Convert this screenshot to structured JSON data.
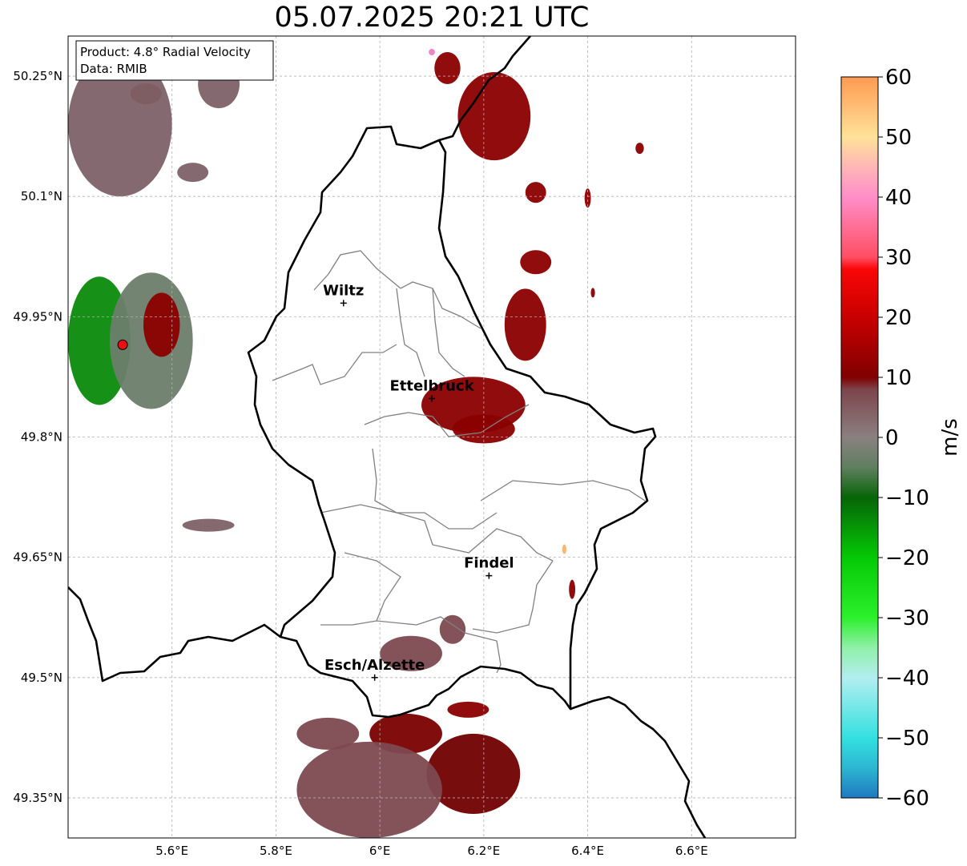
{
  "title": "05.07.2025 20:21 UTC",
  "info_box": {
    "line1": "Product: 4.8° Radial Velocity",
    "line2": "Data: RMIB"
  },
  "map": {
    "lon_range": [
      5.4,
      6.8
    ],
    "lat_range": [
      49.3,
      50.3
    ],
    "lon_ticks": [
      {
        "v": 5.6,
        "label": "5.6°E"
      },
      {
        "v": 5.8,
        "label": "5.8°E"
      },
      {
        "v": 6.0,
        "label": "6°E"
      },
      {
        "v": 6.2,
        "label": "6.2°E"
      },
      {
        "v": 6.4,
        "label": "6.4°E"
      },
      {
        "v": 6.6,
        "label": "6.6°E"
      }
    ],
    "lat_ticks": [
      {
        "v": 50.25,
        "label": "50.25°N"
      },
      {
        "v": 50.1,
        "label": "50.1°N"
      },
      {
        "v": 49.95,
        "label": "49.95°N"
      },
      {
        "v": 49.8,
        "label": "49.8°N"
      },
      {
        "v": 49.65,
        "label": "49.65°N"
      },
      {
        "v": 49.5,
        "label": "49.5°N"
      },
      {
        "v": 49.35,
        "label": "49.35°N"
      }
    ],
    "cities": [
      {
        "name": "Wiltz",
        "lon": 5.93,
        "lat": 49.967
      },
      {
        "name": "Ettelbruck",
        "lon": 6.1,
        "lat": 49.848
      },
      {
        "name": "Findel",
        "lon": 6.21,
        "lat": 49.627
      },
      {
        "name": "Esch/Alzette",
        "lon": 5.99,
        "lat": 49.5
      }
    ],
    "radar_site": {
      "lon": 5.505,
      "lat": 49.915,
      "color": "#e81010"
    },
    "echo_cells": [
      {
        "lon": 6.22,
        "lat": 50.2,
        "rx": 0.07,
        "ry": 0.055,
        "color": "#8b0000"
      },
      {
        "lon": 6.13,
        "lat": 50.26,
        "rx": 0.025,
        "ry": 0.02,
        "color": "#8b0000"
      },
      {
        "lon": 6.3,
        "lat": 50.105,
        "rx": 0.02,
        "ry": 0.013,
        "color": "#8b0000"
      },
      {
        "lon": 6.4,
        "lat": 50.098,
        "rx": 0.006,
        "ry": 0.012,
        "color": "#8b0000"
      },
      {
        "lon": 6.3,
        "lat": 50.018,
        "rx": 0.03,
        "ry": 0.015,
        "color": "#8b0000"
      },
      {
        "lon": 6.28,
        "lat": 49.94,
        "rx": 0.04,
        "ry": 0.045,
        "color": "#8b0000"
      },
      {
        "lon": 6.18,
        "lat": 49.84,
        "rx": 0.1,
        "ry": 0.035,
        "color": "#8b0000"
      },
      {
        "lon": 6.2,
        "lat": 49.81,
        "rx": 0.06,
        "ry": 0.018,
        "color": "#8b0000"
      },
      {
        "lon": 6.5,
        "lat": 50.16,
        "rx": 0.008,
        "ry": 0.007,
        "color": "#8b0000"
      },
      {
        "lon": 6.41,
        "lat": 49.98,
        "rx": 0.004,
        "ry": 0.006,
        "color": "#8b0000"
      },
      {
        "lon": 6.37,
        "lat": 49.61,
        "rx": 0.006,
        "ry": 0.012,
        "color": "#8b0000"
      },
      {
        "lon": 5.55,
        "lat": 50.228,
        "rx": 0.03,
        "ry": 0.013,
        "color": "#8b0000"
      },
      {
        "lon": 6.17,
        "lat": 49.46,
        "rx": 0.04,
        "ry": 0.01,
        "color": "#8b0000"
      },
      {
        "lon": 6.18,
        "lat": 49.38,
        "rx": 0.09,
        "ry": 0.05,
        "color": "#700000"
      },
      {
        "lon": 6.05,
        "lat": 49.43,
        "rx": 0.07,
        "ry": 0.025,
        "color": "#7a0000"
      },
      {
        "lon": 6.06,
        "lat": 49.53,
        "rx": 0.06,
        "ry": 0.022,
        "color": "#7d4950"
      },
      {
        "lon": 6.14,
        "lat": 49.56,
        "rx": 0.025,
        "ry": 0.018,
        "color": "#7d4950"
      },
      {
        "lon": 5.98,
        "lat": 49.36,
        "rx": 0.14,
        "ry": 0.06,
        "color": "#7d4950"
      },
      {
        "lon": 5.9,
        "lat": 49.43,
        "rx": 0.06,
        "ry": 0.02,
        "color": "#7d4950"
      },
      {
        "lon": 5.5,
        "lat": 50.19,
        "rx": 0.1,
        "ry": 0.09,
        "color": "#7d6268"
      },
      {
        "lon": 5.64,
        "lat": 50.13,
        "rx": 0.03,
        "ry": 0.012,
        "color": "#7d6268"
      },
      {
        "lon": 5.69,
        "lat": 50.24,
        "rx": 0.04,
        "ry": 0.03,
        "color": "#7d6268"
      },
      {
        "lon": 5.67,
        "lat": 49.69,
        "rx": 0.05,
        "ry": 0.008,
        "color": "#7d6268"
      },
      {
        "lon": 6.355,
        "lat": 49.66,
        "rx": 0.004,
        "ry": 0.006,
        "color": "#f3b66c"
      },
      {
        "lon": 6.1,
        "lat": 50.28,
        "rx": 0.006,
        "ry": 0.004,
        "color": "#ef7cc1"
      },
      {
        "lon": 5.46,
        "lat": 49.92,
        "rx": 0.06,
        "ry": 0.08,
        "color": "#0b8a0b"
      },
      {
        "lon": 5.56,
        "lat": 49.92,
        "rx": 0.08,
        "ry": 0.085,
        "color": "#6b7d6b"
      },
      {
        "lon": 5.58,
        "lat": 49.94,
        "rx": 0.035,
        "ry": 0.04,
        "color": "#8b0000"
      }
    ],
    "colorbar": {
      "min": -60,
      "max": 60,
      "label": "m/s",
      "ticks": [
        60,
        50,
        40,
        30,
        20,
        10,
        0,
        -10,
        -20,
        -30,
        -40,
        -50,
        -60
      ],
      "stops": [
        {
          "v": -60,
          "c": "#1f79c0"
        },
        {
          "v": -55,
          "c": "#2cb6d2"
        },
        {
          "v": -50,
          "c": "#34e0e0"
        },
        {
          "v": -40,
          "c": "#b2eeef"
        },
        {
          "v": -35,
          "c": "#90f0a8"
        },
        {
          "v": -30,
          "c": "#2cf02c"
        },
        {
          "v": -20,
          "c": "#05c905"
        },
        {
          "v": -10,
          "c": "#076507"
        },
        {
          "v": -5,
          "c": "#5f7f5f"
        },
        {
          "v": 0,
          "c": "#8a8080"
        },
        {
          "v": 8,
          "c": "#7d444c"
        },
        {
          "v": 10,
          "c": "#800000"
        },
        {
          "v": 20,
          "c": "#c90000"
        },
        {
          "v": 28,
          "c": "#fa0606"
        },
        {
          "v": 30,
          "c": "#ff4e63"
        },
        {
          "v": 40,
          "c": "#ff8ec8"
        },
        {
          "v": 45,
          "c": "#ffb6b6"
        },
        {
          "v": 50,
          "c": "#ffe298"
        },
        {
          "v": 60,
          "c": "#ff9a52"
        }
      ]
    }
  }
}
